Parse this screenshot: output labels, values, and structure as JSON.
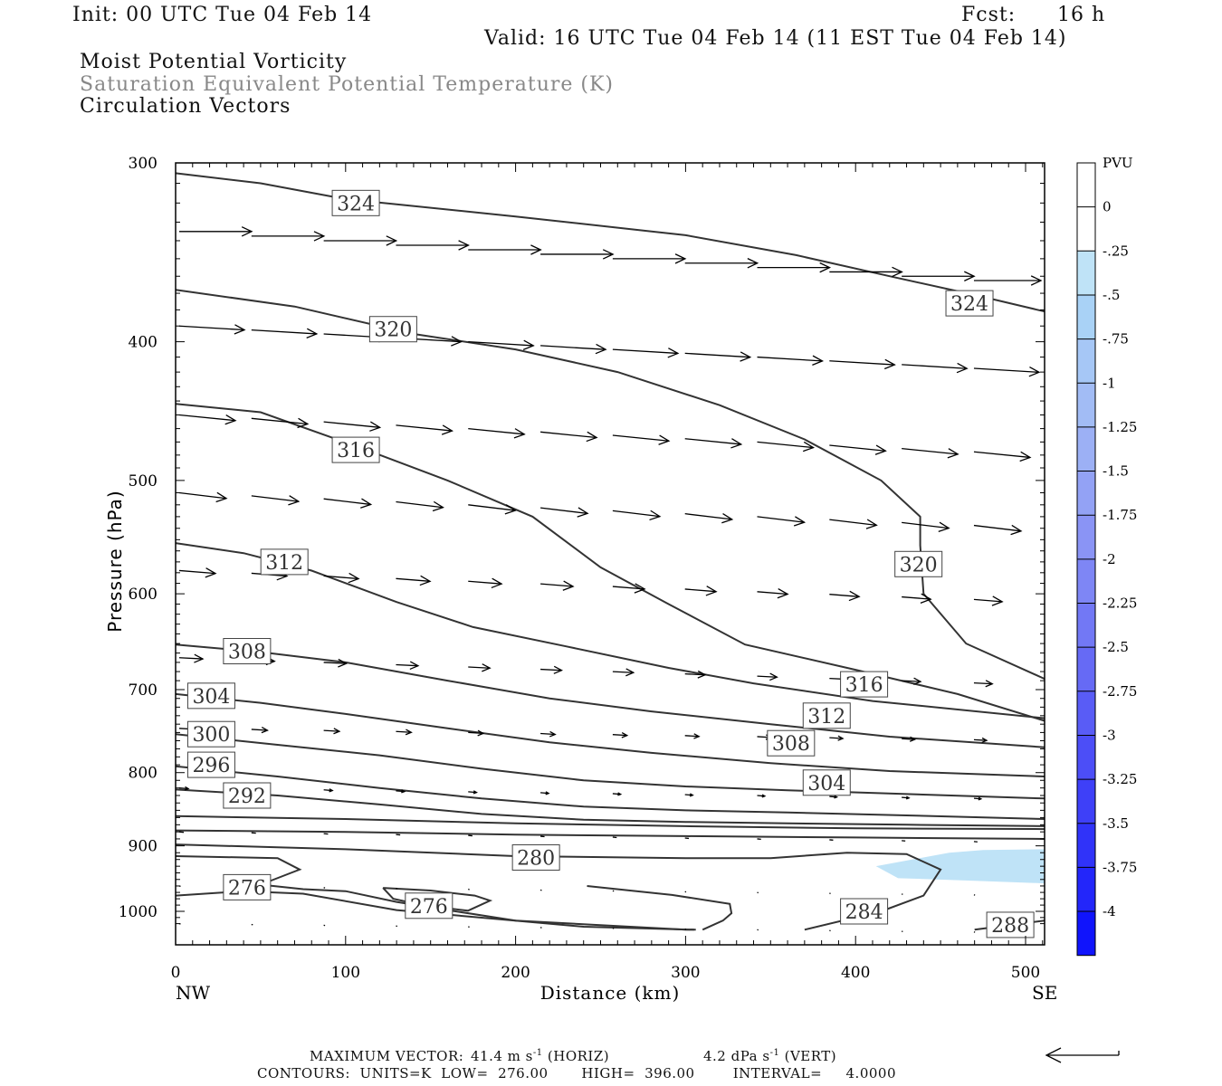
{
  "header": {
    "init": "Init: 00 UTC Tue 04 Feb 14",
    "fcst_label": "Fcst:",
    "fcst_value": "16 h",
    "valid": "Valid: 16 UTC Tue 04 Feb 14 (11 EST Tue 04 Feb 14)"
  },
  "fields": {
    "line1": "Moist Potential Vorticity",
    "line2": "Saturation Equivalent Potential Temperature (K)",
    "line3": "Circulation Vectors"
  },
  "footer": {
    "maxvec_label": "MAXIMUM VECTOR:",
    "maxvec_horiz_value": "41.4 m s",
    "maxvec_horiz_exp": "-1",
    "maxvec_horiz_tag": "(HORIZ)",
    "maxvec_vert_value": "4.2 dPa s",
    "maxvec_vert_exp": "-1",
    "maxvec_vert_tag": "(VERT)",
    "contours": "CONTOURS:  UNITS=K  LOW=  276.00       HIGH=  396.00        INTERVAL=     4.0000"
  },
  "colors": {
    "contour": "#333333",
    "shade_light": "#bfe3f7",
    "arrow": "#000000"
  },
  "chart_data": {
    "type": "contour",
    "xlabel": "Distance (km)",
    "ylabel": "Pressure (hPa)",
    "xlim": [
      0,
      512
    ],
    "ylim": [
      1030,
      300
    ],
    "x_ticks": [
      0,
      100,
      200,
      300,
      400,
      500
    ],
    "y_ticks": [
      300,
      400,
      500,
      600,
      700,
      800,
      900,
      1000
    ],
    "x_end_labels": [
      "NW",
      "SE"
    ],
    "colorbar": {
      "title": "PVU",
      "labels": [
        "0",
        "-.25",
        "-.5",
        "-.75",
        "-1",
        "-1.25",
        "-1.5",
        "-1.75",
        "-2",
        "-2.25",
        "-2.5",
        "-2.75",
        "-3",
        "-3.25",
        "-3.5",
        "-3.75",
        "-4"
      ],
      "colors": [
        "#ffffff",
        "#ffffff",
        "#bfe3f7",
        "#a9d2f6",
        "#a6c7f6",
        "#a2bcf5",
        "#9cb0f5",
        "#93a2f5",
        "#8a94f5",
        "#7e86f5",
        "#7278f5",
        "#666af5",
        "#595cf6",
        "#4c4ef7",
        "#3e40f8",
        "#3033f9",
        "#2326fa",
        "#1014fc"
      ]
    },
    "isentropes": [
      {
        "label": "324",
        "points": [
          [
            0,
            305
          ],
          [
            50,
            310
          ],
          [
            100,
            318
          ],
          [
            200,
            327
          ],
          [
            300,
            337
          ],
          [
            365,
            348
          ],
          [
            420,
            360
          ],
          [
            470,
            371
          ],
          [
            512,
            381
          ]
        ],
        "label_at": [
          106,
          320
        ]
      },
      {
        "label": "324",
        "points": [],
        "label_at": [
          467,
          376
        ]
      },
      {
        "label": "320",
        "points": [
          [
            0,
            368
          ],
          [
            70,
            378
          ],
          [
            140,
            395
          ],
          [
            200,
            405
          ],
          [
            260,
            420
          ],
          [
            320,
            443
          ],
          [
            370,
            468
          ],
          [
            415,
            500
          ],
          [
            438,
            530
          ],
          [
            438,
            555
          ],
          [
            440,
            600
          ],
          [
            465,
            650
          ],
          [
            512,
            688
          ]
        ],
        "label_at": [
          128,
          392
        ]
      },
      {
        "label": "320",
        "points": [],
        "label_at": [
          437,
          572
        ]
      },
      {
        "label": "316",
        "points": [
          [
            0,
            442
          ],
          [
            50,
            448
          ],
          [
            110,
            475
          ],
          [
            160,
            500
          ],
          [
            210,
            530
          ],
          [
            250,
            575
          ],
          [
            290,
            610
          ],
          [
            335,
            651
          ],
          [
            400,
            678
          ],
          [
            460,
            705
          ],
          [
            512,
            736
          ]
        ],
        "label_at": [
          106,
          476
        ]
      },
      {
        "label": "316",
        "points": [],
        "label_at": [
          405,
          694
        ]
      },
      {
        "label": "312",
        "points": [
          [
            0,
            553
          ],
          [
            40,
            562
          ],
          [
            80,
            578
          ],
          [
            130,
            608
          ],
          [
            175,
            633
          ],
          [
            230,
            653
          ],
          [
            290,
            676
          ],
          [
            340,
            693
          ],
          [
            410,
            713
          ],
          [
            512,
            733
          ]
        ],
        "label_at": [
          64,
          570
        ]
      },
      {
        "label": "312",
        "points": [],
        "label_at": [
          383,
          730
        ]
      },
      {
        "label": "308",
        "points": [
          [
            0,
            651
          ],
          [
            50,
            659
          ],
          [
            100,
            670
          ],
          [
            160,
            690
          ],
          [
            220,
            710
          ],
          [
            280,
            725
          ],
          [
            350,
            740
          ],
          [
            420,
            755
          ],
          [
            512,
            768
          ]
        ],
        "label_at": [
          42,
          658
        ]
      },
      {
        "label": "308",
        "points": [],
        "label_at": [
          362,
          763
        ]
      },
      {
        "label": "304",
        "points": [
          [
            0,
            705
          ],
          [
            50,
            715
          ],
          [
            100,
            728
          ],
          [
            160,
            745
          ],
          [
            220,
            762
          ],
          [
            280,
            775
          ],
          [
            350,
            788
          ],
          [
            420,
            798
          ],
          [
            512,
            805
          ]
        ],
        "label_at": [
          21,
          707
        ]
      },
      {
        "label": "304",
        "points": [],
        "label_at": [
          383,
          813
        ]
      },
      {
        "label": "300",
        "points": [
          [
            0,
            752
          ],
          [
            60,
            765
          ],
          [
            120,
            778
          ],
          [
            180,
            795
          ],
          [
            240,
            810
          ],
          [
            300,
            818
          ],
          [
            360,
            823
          ],
          [
            430,
            828
          ],
          [
            512,
            834
          ]
        ],
        "label_at": [
          21,
          752
        ]
      },
      {
        "label": "296",
        "points": [
          [
            0,
            792
          ],
          [
            60,
            805
          ],
          [
            120,
            820
          ],
          [
            180,
            834
          ],
          [
            240,
            845
          ],
          [
            300,
            850
          ],
          [
            360,
            853
          ],
          [
            430,
            857
          ],
          [
            512,
            862
          ]
        ],
        "label_at": [
          21,
          790
        ]
      },
      {
        "label": "292",
        "points": [
          [
            0,
            822
          ],
          [
            60,
            830
          ],
          [
            120,
            842
          ],
          [
            180,
            855
          ],
          [
            240,
            863
          ],
          [
            300,
            866
          ],
          [
            360,
            868
          ],
          [
            430,
            870
          ],
          [
            512,
            872
          ]
        ],
        "label_at": [
          42,
          830
        ]
      },
      {
        "label": "",
        "points": [
          [
            0,
            858
          ],
          [
            100,
            862
          ],
          [
            200,
            868
          ],
          [
            300,
            872
          ],
          [
            400,
            875
          ],
          [
            512,
            876
          ]
        ],
        "label_at": null
      },
      {
        "label": "",
        "points": [
          [
            0,
            878
          ],
          [
            100,
            880
          ],
          [
            200,
            884
          ],
          [
            300,
            886
          ],
          [
            400,
            888
          ],
          [
            512,
            890
          ]
        ],
        "label_at": null
      },
      {
        "label": "280",
        "points": [
          [
            0,
            898
          ],
          [
            100,
            905
          ],
          [
            200,
            915
          ],
          [
            300,
            918
          ],
          [
            350,
            918
          ],
          [
            395,
            910
          ],
          [
            430,
            912
          ],
          [
            450,
            935
          ],
          [
            440,
            975
          ],
          [
            415,
            1000
          ],
          [
            370,
            1030
          ]
        ],
        "label_at": [
          212,
          917
        ]
      },
      {
        "label": "276",
        "points": [
          [
            0,
            915
          ],
          [
            60,
            918
          ],
          [
            73,
            935
          ],
          [
            50,
            958
          ],
          [
            75,
            965
          ],
          [
            100,
            968
          ],
          [
            130,
            985
          ],
          [
            160,
            998
          ],
          [
            200,
            1015
          ],
          [
            300,
            1030
          ],
          [
            306,
            1030
          ]
        ],
        "label_at": [
          42,
          962
        ]
      },
      {
        "label": "",
        "points": [
          [
            0,
            975
          ],
          [
            40,
            968
          ],
          [
            75,
            972
          ],
          [
            130,
            998
          ],
          [
            240,
            1025
          ],
          [
            305,
            1030
          ]
        ],
        "label_at": null
      },
      {
        "label": "276",
        "points": [
          [
            122,
            963
          ],
          [
            150,
            967
          ],
          [
            176,
            975
          ],
          [
            185,
            983
          ],
          [
            172,
            999
          ],
          [
            145,
            990
          ],
          [
            128,
            980
          ],
          [
            122,
            963
          ]
        ],
        "label_at": [
          149,
          991
        ]
      },
      {
        "label": "",
        "points": [
          [
            242,
            960
          ],
          [
            292,
            974
          ],
          [
            326,
            988
          ],
          [
            327,
            1003
          ],
          [
            322,
            1015
          ],
          [
            310,
            1030
          ]
        ],
        "label_at": null
      },
      {
        "label": "284",
        "points": [],
        "label_at": [
          405,
          1000
        ]
      },
      {
        "label": "288",
        "points": [
          [
            470,
            1030
          ],
          [
            512,
            1015
          ]
        ],
        "label_at": [
          491,
          1022
        ]
      }
    ],
    "shading": [
      {
        "pv": "-.25 to -.5",
        "color": "#bfe3f7",
        "polygon": [
          [
            412,
            930
          ],
          [
            455,
            910
          ],
          [
            475,
            906
          ],
          [
            512,
            905
          ],
          [
            512,
            956
          ],
          [
            470,
            952
          ],
          [
            425,
            948
          ],
          [
            412,
            930
          ]
        ]
      }
    ],
    "max_vector_units": {
      "horizontal": "m s-1",
      "vertical": "dPa s-1"
    }
  }
}
